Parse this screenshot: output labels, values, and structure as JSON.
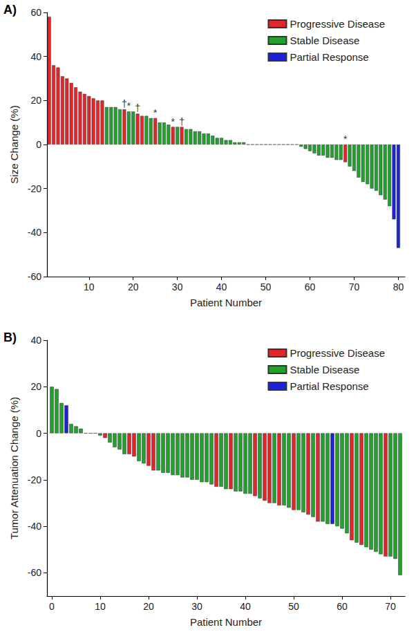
{
  "chart_data": [
    {
      "type": "bar",
      "title": "A)",
      "xlabel": "Patient Number",
      "ylabel": "Size Change (%)",
      "xlim": [
        0.5,
        81.5
      ],
      "xticks": [
        10,
        20,
        30,
        40,
        50,
        60,
        70,
        80
      ],
      "ylim": [
        -60,
        60
      ],
      "yticks": [
        -60,
        -40,
        -20,
        0,
        20,
        40,
        60
      ],
      "grid": false,
      "legend": "upper right",
      "series": [
        {
          "name": "Progressive Disease",
          "color": "#e3262b",
          "x": [
            1,
            2,
            3,
            4,
            5,
            6,
            7,
            8,
            9,
            10,
            11,
            12,
            13,
            18,
            21,
            22,
            25,
            29,
            31,
            68
          ],
          "values": [
            58,
            36,
            35,
            31,
            30,
            28,
            26,
            24,
            23,
            22,
            21,
            20,
            20,
            16,
            14,
            13,
            12,
            8,
            8,
            -8
          ]
        },
        {
          "name": "Stable Disease",
          "color": "#23a12f",
          "x": [
            14,
            15,
            16,
            17,
            19,
            20,
            23,
            24,
            26,
            27,
            28,
            30,
            32,
            33,
            34,
            35,
            36,
            37,
            38,
            39,
            40,
            41,
            42,
            43,
            44,
            45,
            46,
            47,
            48,
            49,
            50,
            51,
            52,
            53,
            54,
            55,
            56,
            57,
            58,
            59,
            60,
            61,
            62,
            63,
            64,
            65,
            66,
            67,
            69,
            70,
            71,
            72,
            73,
            74,
            75,
            76,
            77,
            78
          ],
          "values": [
            17,
            17,
            17,
            16,
            15,
            15,
            13,
            12,
            10,
            10,
            9,
            8,
            7,
            7,
            6,
            6,
            5,
            5,
            4,
            3,
            3,
            2,
            2,
            1,
            1,
            1,
            0,
            0,
            0,
            0,
            0,
            0,
            0,
            0,
            0,
            0,
            0,
            0,
            -1,
            -2,
            -3,
            -4,
            -5,
            -5,
            -6,
            -6,
            -7,
            -7,
            -10,
            -12,
            -15,
            -17,
            -18,
            -20,
            -21,
            -23,
            -25,
            -28
          ]
        },
        {
          "name": "Partial Response",
          "color": "#1c22d6",
          "x": [
            79,
            80
          ],
          "values": [
            -34,
            -47
          ]
        }
      ],
      "annotations": [
        {
          "x": 18,
          "y": 16,
          "text": "†"
        },
        {
          "x": 19,
          "y": 15,
          "text": "*"
        },
        {
          "x": 21,
          "y": 14,
          "text": "†"
        },
        {
          "x": 25,
          "y": 12,
          "text": "*"
        },
        {
          "x": 29,
          "y": 8,
          "text": "*"
        },
        {
          "x": 31,
          "y": 8,
          "text": "†"
        },
        {
          "x": 68,
          "y": 0,
          "text": "*"
        }
      ]
    },
    {
      "type": "bar",
      "title": "B)",
      "xlabel": "Patient Number",
      "ylabel": "Tumor Attenuation Change (%)",
      "xlim": [
        -1,
        73
      ],
      "xticks": [
        0,
        10,
        20,
        30,
        40,
        50,
        60,
        70
      ],
      "ylim": [
        -70,
        40
      ],
      "yticks": [
        -60,
        -40,
        -20,
        0,
        20,
        40
      ],
      "grid": false,
      "legend": "upper right",
      "series": [
        {
          "name": "Progressive Disease",
          "color": "#e3262b",
          "x": [
            11,
            16,
            17,
            20,
            21,
            34,
            37,
            42,
            44,
            45,
            47,
            50,
            53,
            55,
            62,
            64,
            69
          ],
          "values": [
            -2,
            -9,
            -10,
            -14,
            -16,
            -23,
            -24,
            -27,
            -29,
            -30,
            -31,
            -33,
            -35,
            -38,
            -46,
            -48,
            -53
          ]
        },
        {
          "name": "Stable Disease",
          "color": "#23a12f",
          "x": [
            0,
            1,
            2,
            4,
            5,
            6,
            7,
            8,
            9,
            10,
            12,
            13,
            14,
            15,
            18,
            19,
            22,
            23,
            24,
            25,
            26,
            27,
            28,
            29,
            30,
            31,
            32,
            33,
            35,
            36,
            38,
            39,
            40,
            41,
            43,
            46,
            48,
            49,
            51,
            52,
            54,
            56,
            57,
            59,
            60,
            61,
            63,
            65,
            66,
            67,
            68,
            70,
            71,
            72
          ],
          "values": [
            20,
            19,
            13,
            4,
            3,
            2,
            0,
            0,
            0,
            -1,
            -4,
            -6,
            -7,
            -9,
            -12,
            -13,
            -16,
            -17,
            -17,
            -18,
            -18,
            -19,
            -19,
            -20,
            -20,
            -21,
            -21,
            -22,
            -23,
            -24,
            -25,
            -25,
            -26,
            -26,
            -28,
            -30,
            -31,
            -32,
            -33,
            -34,
            -36,
            -38,
            -39,
            -40,
            -41,
            -43,
            -47,
            -49,
            -50,
            -51,
            -52,
            -53,
            -54,
            -61
          ]
        },
        {
          "name": "Partial Response",
          "color": "#1c22d6",
          "x": [
            3,
            58
          ],
          "values": [
            12,
            -39
          ]
        }
      ]
    }
  ]
}
